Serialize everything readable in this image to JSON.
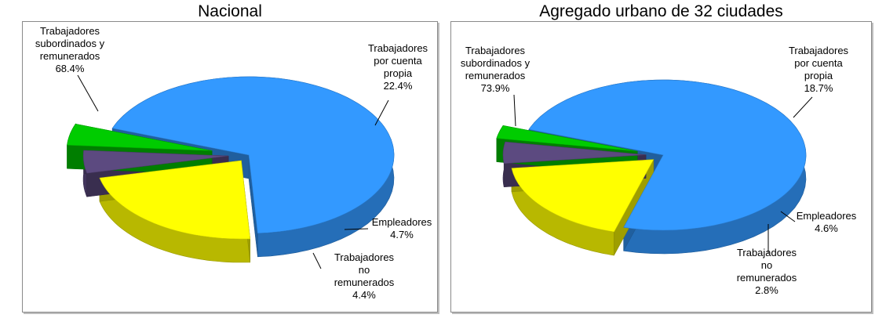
{
  "chart_data": [
    {
      "type": "pie",
      "title": "Nacional",
      "slices": [
        {
          "label": [
            "Trabajadores",
            "subordinados y",
            "remunerados"
          ],
          "value": 68.4,
          "value_label": "68.4%",
          "color": "#3399ff"
        },
        {
          "label": [
            "Trabajadores",
            "por cuenta",
            "propia"
          ],
          "value": 22.4,
          "value_label": "22.4%",
          "color": "#ffff00"
        },
        {
          "label": [
            "Empleadores"
          ],
          "value": 4.7,
          "value_label": "4.7%",
          "color": "#5c4a80"
        },
        {
          "label": [
            "Trabajadores",
            "no",
            "remunerados"
          ],
          "value": 4.4,
          "value_label": "4.4%",
          "color": "#00cc00"
        }
      ]
    },
    {
      "type": "pie",
      "title": "Agregado urbano de 32 ciudades",
      "slices": [
        {
          "label": [
            "Trabajadores",
            "subordinados y",
            "remunerados"
          ],
          "value": 73.9,
          "value_label": "73.9%",
          "color": "#3399ff"
        },
        {
          "label": [
            "Trabajadores",
            "por cuenta",
            "propia"
          ],
          "value": 18.7,
          "value_label": "18.7%",
          "color": "#ffff00"
        },
        {
          "label": [
            "Empleadores"
          ],
          "value": 4.6,
          "value_label": "4.6%",
          "color": "#5c4a80"
        },
        {
          "label": [
            "Trabajadores",
            "no",
            "remunerados"
          ],
          "value": 2.8,
          "value_label": "2.8%",
          "color": "#00cc00"
        }
      ]
    }
  ]
}
